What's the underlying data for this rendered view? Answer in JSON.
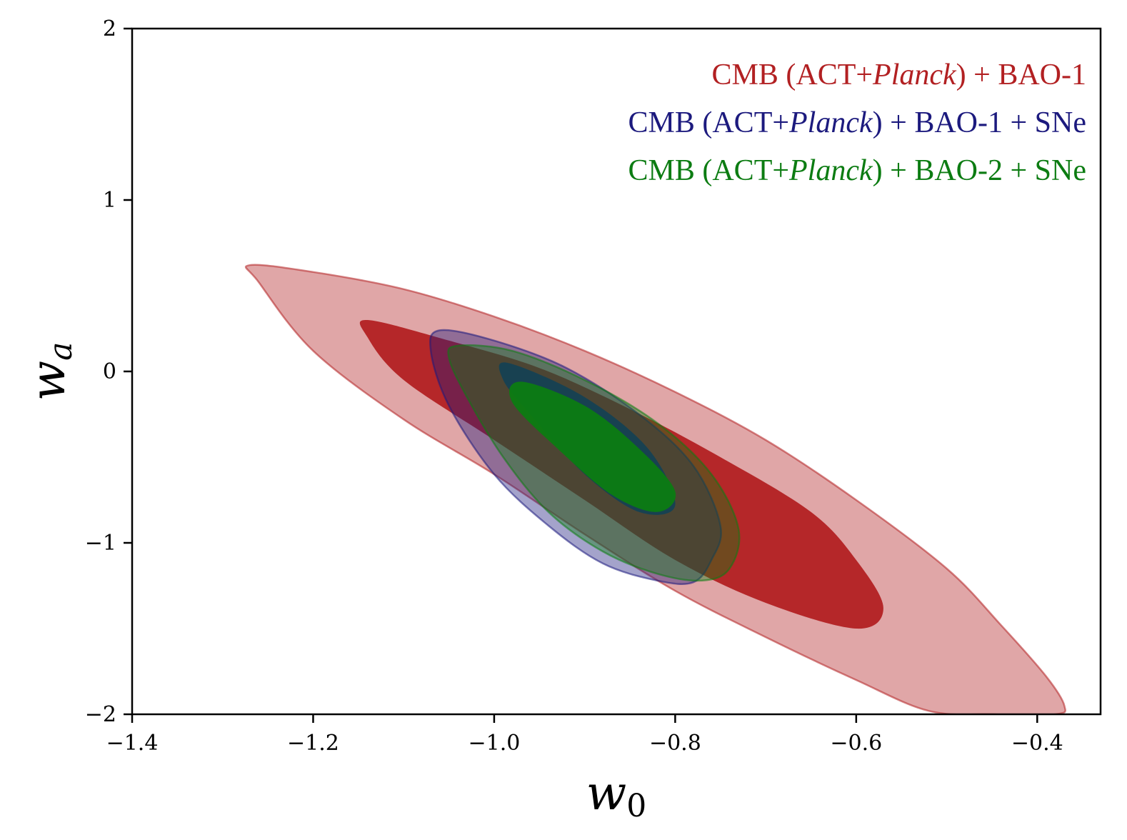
{
  "chart_data": {
    "type": "contour",
    "title": "",
    "xlabel": "w",
    "xlabel_sub": "0",
    "ylabel": "w",
    "ylabel_sub": "a",
    "xlim": [
      -1.4,
      -0.33
    ],
    "ylim": [
      -2,
      2
    ],
    "xticks": [
      -1.4,
      -1.2,
      -1.0,
      -0.8,
      -0.6,
      -0.4
    ],
    "xtick_labels": [
      "−1.4",
      "−1.2",
      "−1.0",
      "−0.8",
      "−0.6",
      "−0.4"
    ],
    "yticks": [
      -2,
      -1,
      0,
      1,
      2
    ],
    "ytick_labels": [
      "−2",
      "−1",
      "0",
      "1",
      "2"
    ],
    "legend_position": "top-right",
    "series": [
      {
        "name": "CMB (ACT+Planck) + BAO-1",
        "legend": {
          "pre": "CMB (ACT+",
          "italic": "Planck",
          "post": ") + BAO-1"
        },
        "color": "#b22022",
        "contour_95": [
          [
            -1.27,
            0.62
          ],
          [
            -1.2,
            0.58
          ],
          [
            -1.1,
            0.48
          ],
          [
            -1.0,
            0.32
          ],
          [
            -0.9,
            0.12
          ],
          [
            -0.8,
            -0.12
          ],
          [
            -0.7,
            -0.4
          ],
          [
            -0.6,
            -0.75
          ],
          [
            -0.5,
            -1.15
          ],
          [
            -0.44,
            -1.48
          ],
          [
            -0.39,
            -1.78
          ],
          [
            -0.37,
            -1.95
          ],
          [
            -0.38,
            -2.0
          ],
          [
            -0.45,
            -2.0
          ],
          [
            -0.52,
            -1.98
          ],
          [
            -0.6,
            -1.8
          ],
          [
            -0.7,
            -1.55
          ],
          [
            -0.8,
            -1.28
          ],
          [
            -0.9,
            -0.95
          ],
          [
            -1.0,
            -0.6
          ],
          [
            -1.1,
            -0.28
          ],
          [
            -1.2,
            0.12
          ],
          [
            -1.26,
            0.52
          ]
        ],
        "contour_68": [
          [
            -1.14,
            0.3
          ],
          [
            -1.05,
            0.18
          ],
          [
            -0.95,
            0.02
          ],
          [
            -0.85,
            -0.22
          ],
          [
            -0.75,
            -0.5
          ],
          [
            -0.65,
            -0.82
          ],
          [
            -0.6,
            -1.1
          ],
          [
            -0.57,
            -1.38
          ],
          [
            -0.6,
            -1.5
          ],
          [
            -0.7,
            -1.35
          ],
          [
            -0.8,
            -1.1
          ],
          [
            -0.9,
            -0.75
          ],
          [
            -1.0,
            -0.4
          ],
          [
            -1.1,
            -0.05
          ],
          [
            -1.14,
            0.2
          ]
        ]
      },
      {
        "name": "CMB (ACT+Planck) + BAO-1 + SNe",
        "legend": {
          "pre": "CMB (ACT+",
          "italic": "Planck",
          "post": ") + BAO-1 + SNe"
        },
        "color": "#1c1a7e",
        "contour_95": [
          [
            -1.06,
            0.24
          ],
          [
            -1.0,
            0.18
          ],
          [
            -0.92,
            0.02
          ],
          [
            -0.84,
            -0.25
          ],
          [
            -0.78,
            -0.55
          ],
          [
            -0.75,
            -0.9
          ],
          [
            -0.76,
            -1.1
          ],
          [
            -0.78,
            -1.23
          ],
          [
            -0.82,
            -1.22
          ],
          [
            -0.88,
            -1.12
          ],
          [
            -0.94,
            -0.9
          ],
          [
            -1.0,
            -0.6
          ],
          [
            -1.05,
            -0.2
          ],
          [
            -1.07,
            0.12
          ]
        ],
        "contour_68": [
          [
            -0.985,
            0.05
          ],
          [
            -0.9,
            -0.15
          ],
          [
            -0.83,
            -0.45
          ],
          [
            -0.8,
            -0.78
          ],
          [
            -0.84,
            -0.82
          ],
          [
            -0.9,
            -0.6
          ],
          [
            -0.96,
            -0.25
          ],
          [
            -0.99,
            -0.05
          ]
        ]
      },
      {
        "name": "CMB (ACT+Planck) + BAO-2 + SNe",
        "legend": {
          "pre": "CMB (ACT+",
          "italic": "Planck",
          "post": ") + BAO-2 + SNe"
        },
        "color": "#0c7c12",
        "contour_95": [
          [
            -1.04,
            0.15
          ],
          [
            -0.98,
            0.12
          ],
          [
            -0.9,
            -0.05
          ],
          [
            -0.82,
            -0.3
          ],
          [
            -0.76,
            -0.6
          ],
          [
            -0.73,
            -0.92
          ],
          [
            -0.74,
            -1.15
          ],
          [
            -0.77,
            -1.22
          ],
          [
            -0.82,
            -1.18
          ],
          [
            -0.88,
            -1.05
          ],
          [
            -0.94,
            -0.82
          ],
          [
            -0.99,
            -0.5
          ],
          [
            -1.03,
            -0.15
          ],
          [
            -1.05,
            0.08
          ]
        ],
        "contour_68": [
          [
            -0.97,
            -0.06
          ],
          [
            -0.9,
            -0.2
          ],
          [
            -0.84,
            -0.45
          ],
          [
            -0.8,
            -0.7
          ],
          [
            -0.82,
            -0.82
          ],
          [
            -0.87,
            -0.72
          ],
          [
            -0.93,
            -0.45
          ],
          [
            -0.98,
            -0.18
          ]
        ]
      }
    ]
  }
}
